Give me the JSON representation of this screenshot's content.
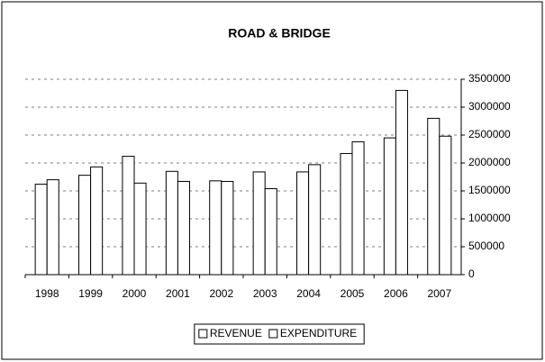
{
  "chart_data": {
    "type": "bar",
    "title": "ROAD & BRIDGE",
    "categories": [
      "1998",
      "1999",
      "2000",
      "2001",
      "2002",
      "2003",
      "2004",
      "2005",
      "2006",
      "2007"
    ],
    "series": [
      {
        "name": "REVENUE",
        "color": "#ffffff",
        "values": [
          1620000,
          1780000,
          2120000,
          1850000,
          1680000,
          1840000,
          1840000,
          2170000,
          2450000,
          2800000
        ]
      },
      {
        "name": "EXPENDITURE",
        "color": "#ffffff",
        "values": [
          1700000,
          1930000,
          1640000,
          1670000,
          1670000,
          1540000,
          1970000,
          2380000,
          3300000,
          2480000
        ]
      }
    ],
    "ylim": [
      0,
      3500000
    ],
    "yticks": [
      0,
      500000,
      1000000,
      1500000,
      2000000,
      2500000,
      3000000,
      3500000
    ],
    "grid": true,
    "legend": "bottom",
    "yaxis_side": "right"
  }
}
